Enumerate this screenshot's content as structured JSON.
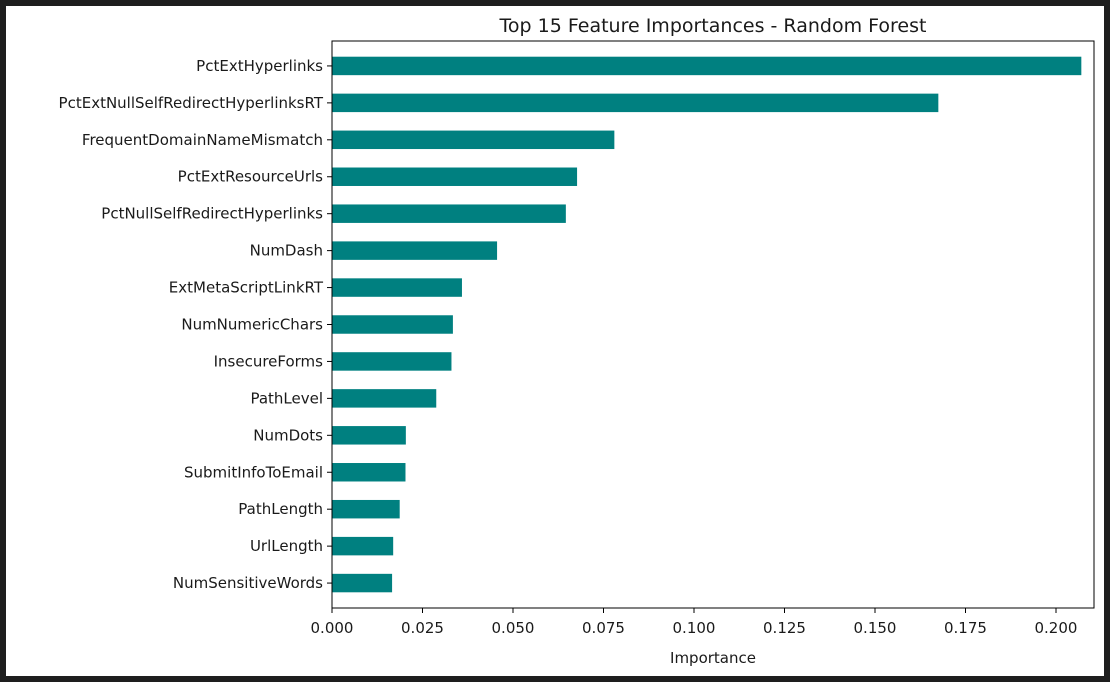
{
  "chart_data": {
    "type": "bar",
    "orientation": "horizontal",
    "title": "Top 15 Feature Importances - Random Forest",
    "xlabel": "Importance",
    "ylabel": "",
    "xlim": [
      0,
      0.2105
    ],
    "x_ticks": [
      "0.000",
      "0.025",
      "0.050",
      "0.075",
      "0.100",
      "0.125",
      "0.150",
      "0.175",
      "0.200"
    ],
    "grid": false,
    "bar_color": "#008080",
    "categories": [
      "PctExtHyperlinks",
      "PctExtNullSelfRedirectHyperlinksRT",
      "FrequentDomainNameMismatch",
      "PctExtResourceUrls",
      "PctNullSelfRedirectHyperlinks",
      "NumDash",
      "ExtMetaScriptLinkRT",
      "NumNumericChars",
      "InsecureForms",
      "PathLevel",
      "NumDots",
      "SubmitInfoToEmail",
      "PathLength",
      "UrlLength",
      "NumSensitiveWords"
    ],
    "values": [
      0.207,
      0.1675,
      0.078,
      0.0677,
      0.0646,
      0.0456,
      0.0359,
      0.0334,
      0.033,
      0.0288,
      0.0204,
      0.0203,
      0.0187,
      0.0169,
      0.0166
    ]
  }
}
